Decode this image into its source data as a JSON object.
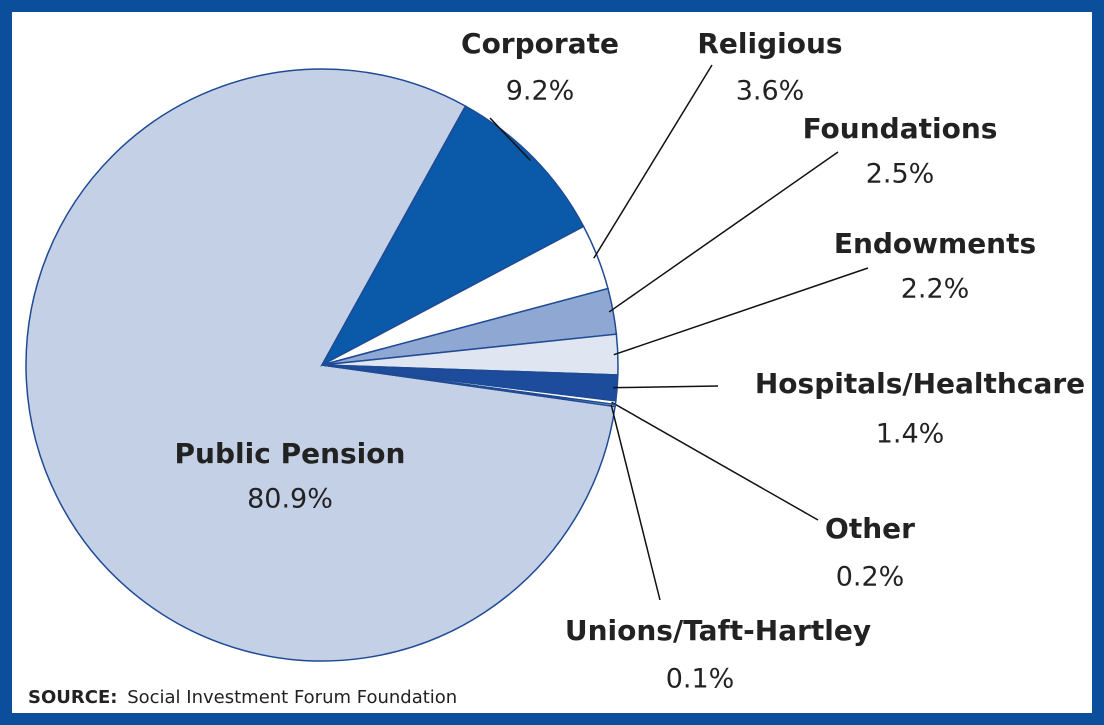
{
  "chart_data": {
    "type": "pie",
    "categories": [
      "Public Pension",
      "Corporate",
      "Religious",
      "Foundations",
      "Endowments",
      "Hospitals/Healthcare",
      "Other",
      "Unions/Taft-Hartley"
    ],
    "values": [
      80.9,
      9.2,
      3.6,
      2.5,
      2.2,
      1.4,
      0.2,
      0.1
    ],
    "value_labels": [
      "80.9%",
      "9.2%",
      "3.6%",
      "2.5%",
      "2.2%",
      "1.4%",
      "0.2%",
      "0.1%"
    ],
    "colors": [
      "#c3d0e5",
      "#0b5aa9",
      "#ffffff",
      "#8fa7d3",
      "#dfe5f1",
      "#1c4c9b",
      "#ffffff",
      "#e8edf6"
    ],
    "source_label": "SOURCE:",
    "source": "Social Investment Forum Foundation"
  }
}
